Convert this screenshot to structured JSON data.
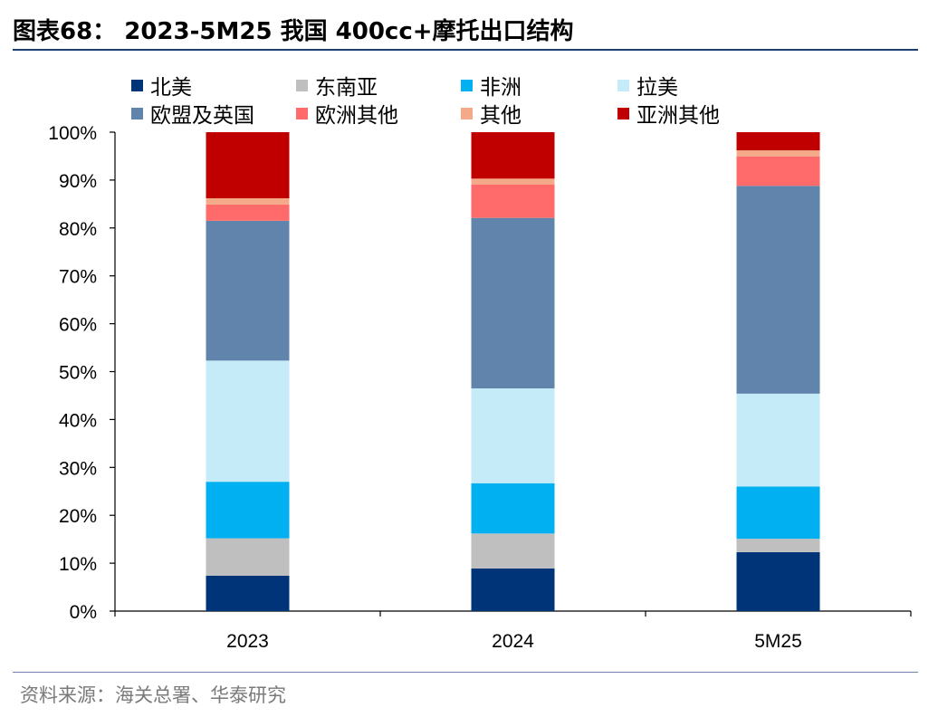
{
  "header": {
    "title": "图表68： 2023-5M25 我国 400cc+摩托出口结构"
  },
  "footer": {
    "source": "资料来源：海关总署、华泰研究"
  },
  "chart_data": {
    "type": "bar",
    "stacked": true,
    "categories": [
      "2023",
      "2024",
      "5M25"
    ],
    "ylim": [
      0,
      100
    ],
    "y_ticks": [
      "0%",
      "10%",
      "20%",
      "30%",
      "40%",
      "50%",
      "60%",
      "70%",
      "80%",
      "90%",
      "100%"
    ],
    "grid": false,
    "legend_position": "top",
    "series": [
      {
        "name": "北美",
        "color": "#003478",
        "values": [
          7.4,
          8.9,
          12.3
        ]
      },
      {
        "name": "东南亚",
        "color": "#bfbfbf",
        "values": [
          7.8,
          7.3,
          2.8
        ]
      },
      {
        "name": "非洲",
        "color": "#00b0f0",
        "values": [
          11.8,
          10.5,
          10.9
        ]
      },
      {
        "name": "拉美",
        "color": "#c5ebf9",
        "values": [
          25.3,
          19.8,
          19.4
        ]
      },
      {
        "name": "欧盟及英国",
        "color": "#6184ad",
        "values": [
          29.2,
          35.6,
          43.4
        ]
      },
      {
        "name": "欧洲其他",
        "color": "#ff6a6a",
        "values": [
          3.4,
          7.0,
          6.1
        ]
      },
      {
        "name": "其他",
        "color": "#f4a988",
        "values": [
          1.3,
          1.2,
          1.3
        ]
      },
      {
        "name": "亚洲其他",
        "color": "#c00000",
        "values": [
          13.8,
          9.7,
          3.8
        ]
      }
    ]
  }
}
